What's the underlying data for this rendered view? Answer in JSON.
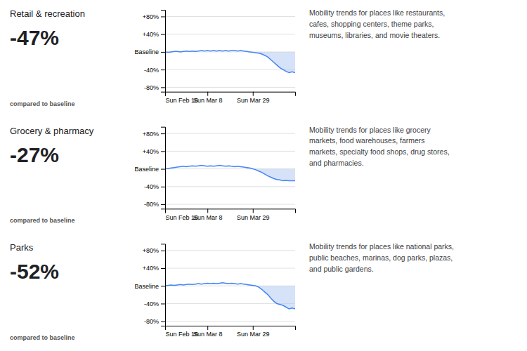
{
  "chart_data": [
    {
      "type": "line",
      "title": "Retail & recreation",
      "annotations": [
        "-47%",
        "compared to baseline",
        "Mobility trends for places like restaurants,\ncafes, shopping centers, theme parks,\nmuseums, libraries, and movie theaters."
      ],
      "categories": [
        "Sun Feb 16",
        null,
        null,
        null,
        null,
        null,
        null,
        null,
        null,
        null,
        null,
        null,
        null,
        null,
        "Sun Mar 8",
        null,
        null,
        null,
        null,
        null,
        null,
        null,
        null,
        null,
        null,
        null,
        null,
        null,
        null,
        "Sun Mar 29",
        null,
        null,
        null,
        null,
        null,
        null,
        null,
        null,
        null,
        null,
        null,
        null,
        null,
        null
      ],
      "series": [
        {
          "type": "line",
          "color": "#4285f4",
          "values": [
            0,
            -1,
            0,
            1,
            1,
            0,
            1,
            2,
            1,
            2,
            1,
            2,
            3,
            2,
            3,
            2,
            3,
            2,
            3,
            2,
            3,
            2,
            3,
            3,
            2,
            3,
            2,
            1,
            0,
            -1,
            -2,
            -3,
            -5,
            -8,
            -12,
            -18,
            -24,
            -30,
            -36,
            -40,
            -44,
            -47,
            -45,
            -47
          ]
        },
        {
          "type": "area",
          "color": "#aec6ef",
          "values": [
            null,
            null,
            null,
            null,
            null,
            null,
            null,
            null,
            null,
            null,
            null,
            null,
            null,
            null,
            null,
            null,
            null,
            null,
            null,
            null,
            null,
            null,
            null,
            null,
            null,
            null,
            null,
            1,
            0,
            -1,
            -2,
            -3,
            -5,
            -8,
            -12,
            -18,
            -24,
            -30,
            -36,
            -40,
            -44,
            -47,
            -45,
            -47
          ]
        }
      ],
      "ylim": [
        -90,
        95
      ],
      "yticks": [
        {
          "value": -80,
          "label": "-80%"
        },
        {
          "value": -40,
          "label": "-40%"
        },
        {
          "value": 0,
          "label": "Baseline"
        },
        {
          "value": 40,
          "label": "+40%"
        },
        {
          "value": 80,
          "label": "+80%"
        }
      ],
      "grid": true
    },
    {
      "type": "line",
      "title": "Grocery & pharmacy",
      "annotations": [
        "-27%",
        "compared to baseline",
        "Mobility trends for places like grocery\nmarkets, food warehouses, farmers\nmarkets, specialty food shops, drug stores,\nand pharmacies."
      ],
      "categories": [
        "Sun Feb 16",
        null,
        null,
        null,
        null,
        null,
        null,
        null,
        null,
        null,
        null,
        null,
        null,
        null,
        "Sun Mar 8",
        null,
        null,
        null,
        null,
        null,
        null,
        null,
        null,
        null,
        null,
        null,
        null,
        null,
        null,
        "Sun Mar 29",
        null,
        null,
        null,
        null,
        null,
        null,
        null,
        null,
        null,
        null,
        null,
        null,
        null,
        null
      ],
      "series": [
        {
          "type": "line",
          "color": "#4285f4",
          "values": [
            0,
            1,
            2,
            3,
            4,
            5,
            6,
            5,
            6,
            7,
            6,
            7,
            8,
            7,
            6,
            7,
            6,
            7,
            8,
            7,
            6,
            7,
            6,
            5,
            6,
            5,
            4,
            3,
            2,
            0,
            -2,
            -5,
            -8,
            -12,
            -16,
            -19,
            -22,
            -24,
            -25,
            -27,
            -26,
            -27,
            -27,
            -27
          ]
        },
        {
          "type": "area",
          "color": "#aec6ef",
          "values": [
            null,
            null,
            null,
            null,
            null,
            null,
            null,
            null,
            null,
            null,
            null,
            null,
            null,
            null,
            null,
            null,
            null,
            null,
            null,
            null,
            null,
            null,
            null,
            null,
            null,
            null,
            null,
            3,
            2,
            0,
            -2,
            -5,
            -8,
            -12,
            -16,
            -19,
            -22,
            -24,
            -25,
            -27,
            -26,
            -27,
            -27,
            -27
          ]
        }
      ],
      "ylim": [
        -90,
        95
      ],
      "yticks": [
        {
          "value": -80,
          "label": "-80%"
        },
        {
          "value": -40,
          "label": "-40%"
        },
        {
          "value": 0,
          "label": "Baseline"
        },
        {
          "value": 40,
          "label": "+40%"
        },
        {
          "value": 80,
          "label": "+80%"
        }
      ],
      "grid": true
    },
    {
      "type": "line",
      "title": "Parks",
      "annotations": [
        "-52%",
        "compared to baseline",
        "Mobility trends for places like national parks,\npublic beaches, marinas, dog parks, plazas,\nand public gardens."
      ],
      "categories": [
        "Sun Feb 16",
        null,
        null,
        null,
        null,
        null,
        null,
        null,
        null,
        null,
        null,
        null,
        null,
        null,
        "Sun Mar 8",
        null,
        null,
        null,
        null,
        null,
        null,
        null,
        null,
        null,
        null,
        null,
        null,
        null,
        null,
        "Sun Mar 29",
        null,
        null,
        null,
        null,
        null,
        null,
        null,
        null,
        null,
        null,
        null,
        null,
        null,
        null
      ],
      "series": [
        {
          "type": "line",
          "color": "#4285f4",
          "values": [
            0,
            1,
            2,
            1,
            2,
            3,
            2,
            3,
            4,
            3,
            4,
            5,
            4,
            5,
            6,
            5,
            6,
            5,
            6,
            7,
            6,
            5,
            6,
            5,
            4,
            5,
            4,
            3,
            2,
            1,
            0,
            -3,
            -8,
            -14,
            -20,
            -28,
            -35,
            -40,
            -42,
            -44,
            -48,
            -52,
            -50,
            -52
          ]
        },
        {
          "type": "area",
          "color": "#aec6ef",
          "values": [
            null,
            null,
            null,
            null,
            null,
            null,
            null,
            null,
            null,
            null,
            null,
            null,
            null,
            null,
            null,
            null,
            null,
            null,
            null,
            null,
            null,
            null,
            null,
            null,
            null,
            null,
            null,
            3,
            2,
            1,
            0,
            -3,
            -8,
            -14,
            -20,
            -28,
            -35,
            -40,
            -42,
            -44,
            -48,
            -52,
            -50,
            -52
          ]
        }
      ],
      "ylim": [
        -90,
        95
      ],
      "yticks": [
        {
          "value": -80,
          "label": "-80%"
        },
        {
          "value": -40,
          "label": "-40%"
        },
        {
          "value": 0,
          "label": "Baseline"
        },
        {
          "value": 40,
          "label": "+40%"
        },
        {
          "value": 80,
          "label": "+80%"
        }
      ],
      "grid": true
    }
  ]
}
